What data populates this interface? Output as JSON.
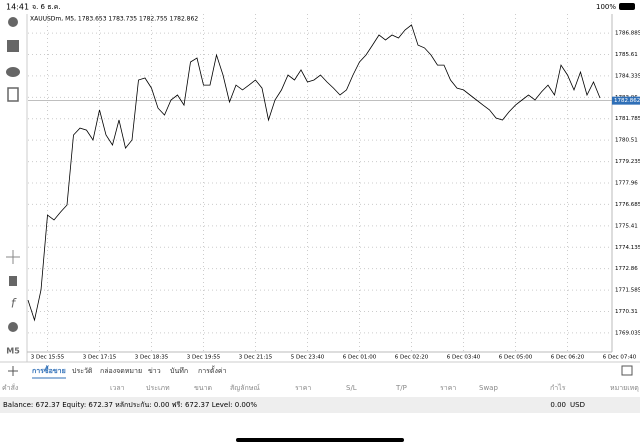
{
  "status_bar": {
    "time": "14:41",
    "date": "จ. 6 ธ.ค.",
    "battery": "100%"
  },
  "chart_data": {
    "type": "line",
    "title": "XAUUSDm, M5, 1783.653 1783.735 1782.755 1782.862",
    "values": [
      1770.99,
      1769.8,
      1771.59,
      1776.05,
      1775.76,
      1776.23,
      1776.65,
      1780.82,
      1781.23,
      1781.11,
      1780.52,
      1782.31,
      1780.82,
      1780.22,
      1781.71,
      1780.04,
      1780.52,
      1784.09,
      1784.21,
      1783.61,
      1782.42,
      1782.01,
      1782.9,
      1783.2,
      1782.6,
      1785.16,
      1785.4,
      1783.79,
      1783.79,
      1785.58,
      1784.39,
      1782.78,
      1783.79,
      1783.5,
      1783.79,
      1784.09,
      1783.61,
      1781.71,
      1782.9,
      1783.5,
      1784.39,
      1784.09,
      1784.69,
      1783.97,
      1784.09,
      1784.39,
      1783.97,
      1783.61,
      1783.2,
      1783.5,
      1784.39,
      1785.16,
      1785.58,
      1786.17,
      1786.77,
      1786.47,
      1786.77,
      1786.59,
      1787.07,
      1787.37,
      1786.17,
      1786.0,
      1785.58,
      1784.98,
      1784.98,
      1784.09,
      1783.61,
      1783.5,
      1783.2,
      1782.9,
      1782.6,
      1782.31,
      1781.83,
      1781.71,
      1782.19,
      1782.6,
      1782.9,
      1783.2,
      1782.9,
      1783.38,
      1783.79,
      1783.2,
      1784.98,
      1784.39,
      1783.5,
      1784.57,
      1783.2,
      1783.97,
      1783.02
    ],
    "color": "#000000",
    "current_price": 1782.862,
    "xlim": [
      0,
      92
    ],
    "ylim": [
      1767.9,
      1788.02
    ],
    "xticks": [
      {
        "value": 3,
        "label": "3 Dec 15:55"
      },
      {
        "value": 11,
        "label": "3 Dec 17:15"
      },
      {
        "value": 19,
        "label": "3 Dec 18:35"
      },
      {
        "value": 27,
        "label": "3 Dec 19:55"
      },
      {
        "value": 35,
        "label": "3 Dec 21:15"
      },
      {
        "value": 43,
        "label": "5 Dec 23:40"
      },
      {
        "value": 51,
        "label": "6 Dec 01:00"
      },
      {
        "value": 59,
        "label": "6 Dec 02:20"
      },
      {
        "value": 67,
        "label": "6 Dec 03:40"
      },
      {
        "value": 75,
        "label": "6 Dec 05:00"
      },
      {
        "value": 83,
        "label": "6 Dec 06:20"
      },
      {
        "value": 91,
        "label": "6 Dec 07:40"
      }
    ],
    "yticks": [
      1786.885,
      1785.61,
      {
        "value": 1784.335,
        "label": "1784.335"
      },
      1783.06,
      1781.785,
      1780.51,
      1779.235,
      1777.96,
      1776.685,
      1775.41,
      1774.135,
      1772.86,
      1771.585,
      1770.31,
      1769.035
    ],
    "grid": true
  },
  "sidebar": {
    "timeframe": "M5"
  },
  "tabs": [
    "การซื้อขาย",
    "ประวัติ",
    "กล่องจดหมาย",
    "ข่าว",
    "บันทึก",
    "การตั้งค่า"
  ],
  "table": {
    "headers": [
      "คำสั่ง",
      "เวลา",
      "ประเภท",
      "ขนาด",
      "สัญลักษณ์",
      "ราคา",
      "S/L",
      "T/P",
      "ราคา",
      "Swap",
      "กำไร",
      "หมายเหตุ"
    ]
  },
  "summary": {
    "text": "Balance: 672.37 Equity: 672.37 หลักประกัน: 0.00 ฟรี: 672.37 Level: 0.00%",
    "profit": "0.00",
    "currency": "USD"
  }
}
